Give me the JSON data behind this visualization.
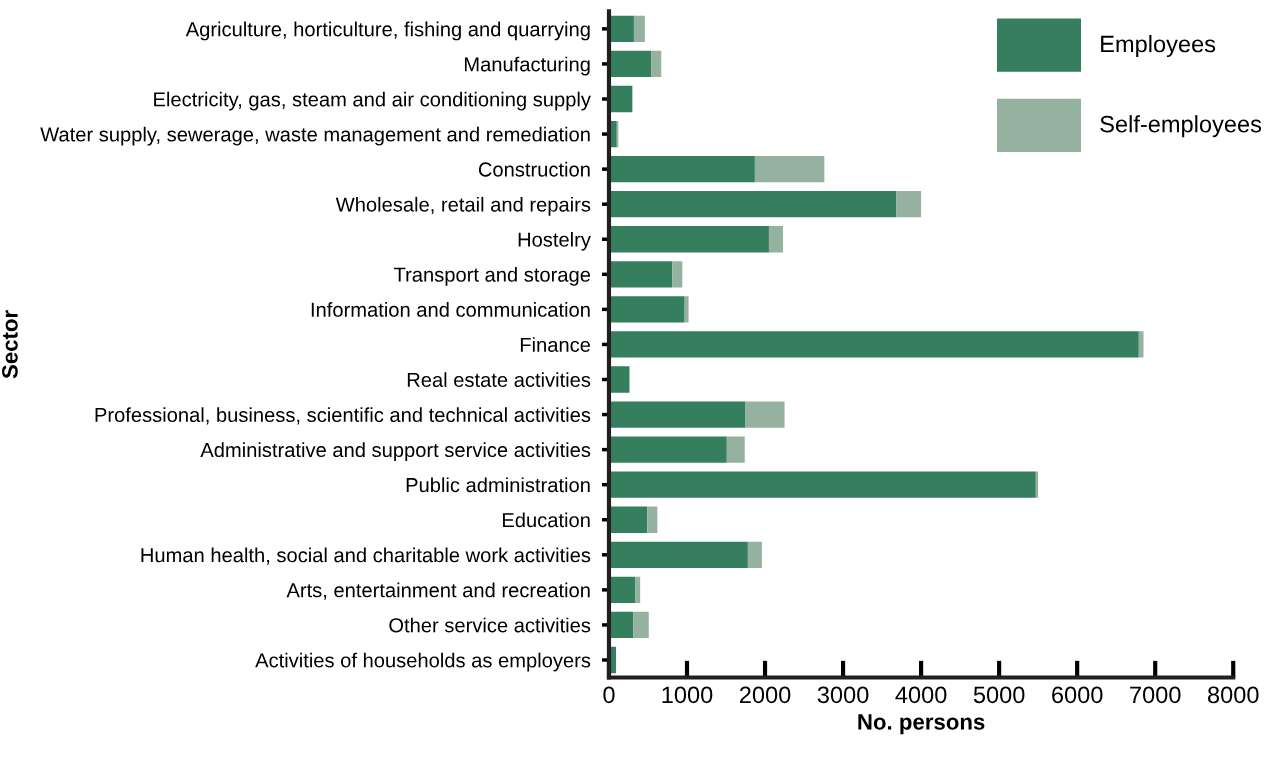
{
  "chart_data": {
    "type": "bar",
    "orientation": "horizontal",
    "stacked": true,
    "xlabel": "No. persons",
    "ylabel": "Sector",
    "categories": [
      "Agriculture, horticulture, fishing and quarrying",
      "Manufacturing",
      "Electricity, gas, steam and air conditioning supply",
      "Water supply, sewerage, waste management and remediation",
      "Construction",
      "Wholesale, retail and repairs",
      "Hostelry",
      "Transport and storage",
      "Information and communication",
      "Finance",
      "Real estate activities",
      "Professional, business, scientific and technical activities",
      "Administrative and support service activities",
      "Public administration",
      "Education",
      "Human health, social and charitable work activities",
      "Arts, entertainment and recreation",
      "Other service activities",
      "Activities of households as employers"
    ],
    "series": [
      {
        "name": "Employees",
        "color": "#357f5f",
        "values": [
          320,
          540,
          300,
          100,
          1870,
          3680,
          2050,
          810,
          970,
          6790,
          260,
          1750,
          1510,
          5470,
          490,
          1780,
          340,
          310,
          90
        ]
      },
      {
        "name": "Self-employees",
        "color": "#95b2a0",
        "values": [
          140,
          130,
          0,
          20,
          890,
          320,
          180,
          130,
          50,
          60,
          10,
          500,
          230,
          30,
          130,
          180,
          60,
          200,
          0
        ]
      }
    ],
    "xlim": [
      0,
      8000
    ],
    "xticks": [
      0,
      1000,
      2000,
      3000,
      4000,
      5000,
      6000,
      7000,
      8000
    ],
    "grid": false,
    "legend": "top right"
  }
}
